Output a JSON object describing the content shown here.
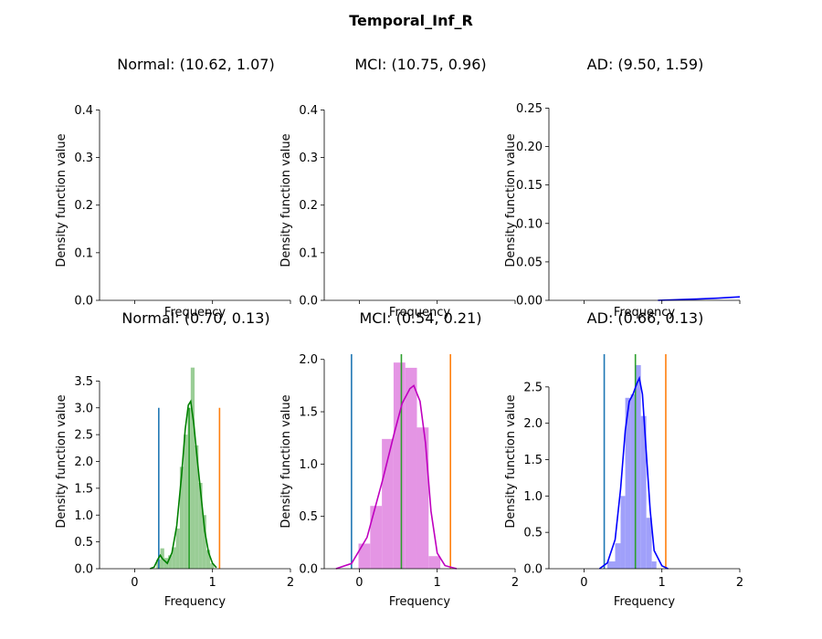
{
  "figure": {
    "title": "Temporal_Inf_R",
    "accent_colors": {
      "normal": "#008000",
      "normal_bars": "#9ACD96",
      "mci": "#BF00BF",
      "mci_bars": "#E495E4",
      "ad": "#0000FF",
      "ad_bars": "#A0A0FA",
      "left_marker": "#1F77B4",
      "right_marker": "#FF7F0E",
      "mean_marker": "#2CA02C"
    }
  },
  "chart_data": [
    {
      "type": "line",
      "title": "Normal: (10.62, 1.07)",
      "xlabel": "Frequency",
      "ylabel": "Density function value",
      "xlim": [
        -0.45,
        2.0
      ],
      "xticks": [],
      "ylim": [
        0,
        0.42
      ],
      "yticks": [
        "0.0",
        "0.1",
        "0.2",
        "0.3",
        "0.4"
      ],
      "ytick_values": [
        0,
        0.1,
        0.2,
        0.3,
        0.4
      ],
      "color": "#008000",
      "curve": []
    },
    {
      "type": "line",
      "title": "MCI: (10.75, 0.96)",
      "xlabel": "Frequency",
      "ylabel": "Density function value",
      "xlim": [
        -0.45,
        2.0
      ],
      "xticks": [],
      "ylim": [
        0,
        0.42
      ],
      "yticks": [
        "0.0",
        "0.1",
        "0.2",
        "0.3",
        "0.4"
      ],
      "ytick_values": [
        0,
        0.1,
        0.2,
        0.3,
        0.4
      ],
      "color": "#BF00BF",
      "curve": []
    },
    {
      "type": "line",
      "title": "AD: (9.50, 1.59)",
      "xlabel": "Frequency",
      "ylabel": "Density function value",
      "xlim": [
        -0.45,
        2.0
      ],
      "xticks": [],
      "ylim": [
        0,
        0.26
      ],
      "yticks": [
        "0.00",
        "0.05",
        "0.10",
        "0.15",
        "0.20",
        "0.25"
      ],
      "ytick_values": [
        0,
        0.05,
        0.1,
        0.15,
        0.2,
        0.25
      ],
      "color": "#0000FF",
      "curve": [
        [
          0.95,
          0.0
        ],
        [
          1.2,
          0.0008
        ],
        [
          1.45,
          0.0017
        ],
        [
          1.7,
          0.0027
        ],
        [
          2.0,
          0.0045
        ]
      ]
    },
    {
      "type": "bar",
      "title": "Normal: (0.70, 0.13)",
      "xlabel": "Frequency",
      "ylabel": "Density function value",
      "xlim": [
        -0.45,
        2.0
      ],
      "xticks": [
        "0",
        "1",
        "2"
      ],
      "xtick_values": [
        0,
        1,
        2
      ],
      "ylim": [
        0,
        4.0
      ],
      "yticks": [
        "0.0",
        "0.5",
        "1.0",
        "1.5",
        "2.0",
        "2.5",
        "3.0",
        "3.5"
      ],
      "ytick_values": [
        0,
        0.5,
        1.0,
        1.5,
        2.0,
        2.5,
        3.0,
        3.5
      ],
      "bar_color": "#9ACD96",
      "line_color": "#008000",
      "bins": [
        [
          0.28,
          0.33,
          0.17
        ],
        [
          0.33,
          0.38,
          0.38
        ],
        [
          0.38,
          0.43,
          0.2
        ],
        [
          0.43,
          0.48,
          0.25
        ],
        [
          0.48,
          0.53,
          0.4
        ],
        [
          0.53,
          0.58,
          0.75
        ],
        [
          0.58,
          0.63,
          1.9
        ],
        [
          0.63,
          0.68,
          2.5
        ],
        [
          0.68,
          0.72,
          3.0
        ],
        [
          0.72,
          0.77,
          3.75
        ],
        [
          0.77,
          0.82,
          2.3
        ],
        [
          0.82,
          0.87,
          1.6
        ],
        [
          0.87,
          0.92,
          1.0
        ],
        [
          0.92,
          0.97,
          0.35
        ],
        [
          0.97,
          1.02,
          0.1
        ]
      ],
      "curve": [
        [
          0.2,
          0.0
        ],
        [
          0.25,
          0.03
        ],
        [
          0.3,
          0.18
        ],
        [
          0.33,
          0.25
        ],
        [
          0.36,
          0.18
        ],
        [
          0.42,
          0.1
        ],
        [
          0.48,
          0.3
        ],
        [
          0.54,
          0.8
        ],
        [
          0.6,
          1.7
        ],
        [
          0.65,
          2.6
        ],
        [
          0.69,
          3.05
        ],
        [
          0.72,
          3.12
        ],
        [
          0.76,
          2.7
        ],
        [
          0.8,
          2.1
        ],
        [
          0.85,
          1.4
        ],
        [
          0.9,
          0.7
        ],
        [
          0.95,
          0.3
        ],
        [
          1.0,
          0.1
        ],
        [
          1.05,
          0.02
        ]
      ],
      "vlines": [
        {
          "x": 0.31,
          "y": 3.0,
          "color": "#1F77B4"
        },
        {
          "x": 0.7,
          "y": 3.0,
          "color": "#2CA02C"
        },
        {
          "x": 1.09,
          "y": 3.0,
          "color": "#FF7F0E"
        }
      ]
    },
    {
      "type": "bar",
      "title": "MCI: (0.54, 0.21)",
      "xlabel": "Frequency",
      "ylabel": "Density function value",
      "xlim": [
        -0.45,
        2.0
      ],
      "xticks": [
        "0",
        "1",
        "2"
      ],
      "xtick_values": [
        0,
        1,
        2
      ],
      "ylim": [
        0,
        2.05
      ],
      "yticks": [
        "0.0",
        "0.5",
        "1.0",
        "1.5",
        "2.0"
      ],
      "ytick_values": [
        0,
        0.5,
        1.0,
        1.5,
        2.0
      ],
      "bar_color": "#E495E4",
      "line_color": "#BF00BF",
      "bins": [
        [
          -0.01,
          0.14,
          0.24
        ],
        [
          0.14,
          0.29,
          0.6
        ],
        [
          0.29,
          0.44,
          1.24
        ],
        [
          0.44,
          0.59,
          1.97
        ],
        [
          0.59,
          0.74,
          1.92
        ],
        [
          0.74,
          0.89,
          1.35
        ],
        [
          0.89,
          1.04,
          0.12
        ]
      ],
      "curve": [
        [
          -0.3,
          0.0
        ],
        [
          -0.1,
          0.05
        ],
        [
          0.1,
          0.3
        ],
        [
          0.3,
          0.85
        ],
        [
          0.45,
          1.3
        ],
        [
          0.55,
          1.58
        ],
        [
          0.65,
          1.72
        ],
        [
          0.7,
          1.75
        ],
        [
          0.78,
          1.6
        ],
        [
          0.85,
          1.2
        ],
        [
          0.92,
          0.55
        ],
        [
          1.0,
          0.15
        ],
        [
          1.1,
          0.03
        ],
        [
          1.25,
          0.0
        ]
      ],
      "vlines": [
        {
          "x": -0.1,
          "y": 2.05,
          "color": "#1F77B4"
        },
        {
          "x": 0.54,
          "y": 2.05,
          "color": "#2CA02C"
        },
        {
          "x": 1.17,
          "y": 2.05,
          "color": "#FF7F0E"
        }
      ]
    },
    {
      "type": "bar",
      "title": "AD: (0.66, 0.13)",
      "xlabel": "Frequency",
      "ylabel": "Density function value",
      "xlim": [
        -0.45,
        2.0
      ],
      "xticks": [
        "0",
        "1",
        "2"
      ],
      "xtick_values": [
        0,
        1,
        2
      ],
      "ylim": [
        0,
        2.95
      ],
      "yticks": [
        "0.0",
        "0.5",
        "1.0",
        "1.5",
        "2.0",
        "2.5"
      ],
      "ytick_values": [
        0,
        0.5,
        1.0,
        1.5,
        2.0,
        2.5
      ],
      "bar_color": "#A0A0FA",
      "line_color": "#0000FF",
      "bins": [
        [
          0.3,
          0.4,
          0.1
        ],
        [
          0.4,
          0.47,
          0.35
        ],
        [
          0.47,
          0.53,
          1.0
        ],
        [
          0.53,
          0.6,
          2.35
        ],
        [
          0.6,
          0.66,
          2.4
        ],
        [
          0.66,
          0.73,
          2.8
        ],
        [
          0.73,
          0.8,
          2.1
        ],
        [
          0.8,
          0.87,
          0.7
        ],
        [
          0.87,
          0.93,
          0.1
        ]
      ],
      "curve": [
        [
          0.2,
          0.0
        ],
        [
          0.3,
          0.08
        ],
        [
          0.4,
          0.4
        ],
        [
          0.47,
          1.1
        ],
        [
          0.53,
          1.9
        ],
        [
          0.58,
          2.3
        ],
        [
          0.63,
          2.4
        ],
        [
          0.68,
          2.55
        ],
        [
          0.71,
          2.62
        ],
        [
          0.75,
          2.4
        ],
        [
          0.8,
          1.6
        ],
        [
          0.85,
          0.8
        ],
        [
          0.9,
          0.25
        ],
        [
          1.0,
          0.04
        ],
        [
          1.08,
          0.0
        ]
      ],
      "vlines": [
        {
          "x": 0.26,
          "y": 2.95,
          "color": "#1F77B4"
        },
        {
          "x": 0.66,
          "y": 2.95,
          "color": "#2CA02C"
        },
        {
          "x": 1.05,
          "y": 2.95,
          "color": "#FF7F0E"
        }
      ]
    }
  ]
}
